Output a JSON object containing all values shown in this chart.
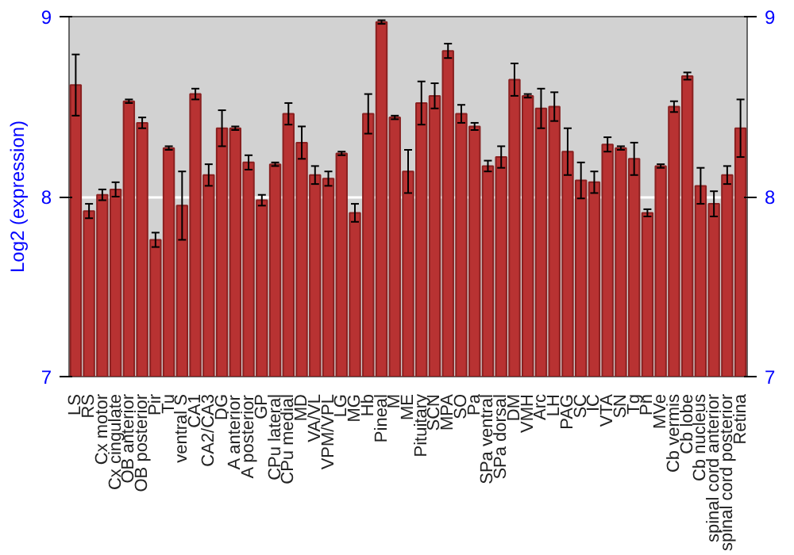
{
  "chart_data": {
    "type": "bar",
    "ylabel": "Log2 (expression)",
    "categories": [
      "LS",
      "RS",
      "Cx motor",
      "Cx cingulate",
      "OB anterior",
      "OB posterior",
      "Pir",
      "Tu",
      "ventral S",
      "CA1",
      "CA2/CA3",
      "DG",
      "A anterior",
      "A posterior",
      "GP",
      "CPu lateral",
      "CPu medial",
      "MD",
      "VA/VL",
      "VPM/VPL",
      "LG",
      "MG",
      "Hb",
      "Pineal",
      "M",
      "ME",
      "Pituitary",
      "SCN",
      "MPA",
      "SO",
      "Pa",
      "SPa ventral",
      "SPa dorsal",
      "DM",
      "VMH",
      "Arc",
      "LH",
      "PAG",
      "SC",
      "IC",
      "VTA",
      "SN",
      "Tg",
      "Pn",
      "MVe",
      "Cb vermis",
      "Cb lobe",
      "Cb nucleus",
      "spinal cord anterior",
      "spinal cord posterior",
      "Retina"
    ],
    "values": [
      8.62,
      7.92,
      8.01,
      8.04,
      8.53,
      8.41,
      7.76,
      8.27,
      7.95,
      8.57,
      8.12,
      8.38,
      8.38,
      8.19,
      7.98,
      8.18,
      8.46,
      8.3,
      8.12,
      8.1,
      8.24,
      7.91,
      8.46,
      8.97,
      8.44,
      8.14,
      8.52,
      8.56,
      8.81,
      8.46,
      8.39,
      8.17,
      8.22,
      8.65,
      8.56,
      8.49,
      8.5,
      8.25,
      8.09,
      8.08,
      8.29,
      8.27,
      8.21,
      7.91,
      8.17,
      8.5,
      8.67,
      8.06,
      7.96,
      8.12,
      8.38
    ],
    "errors": [
      0.17,
      0.04,
      0.03,
      0.04,
      0.01,
      0.03,
      0.04,
      0.01,
      0.19,
      0.03,
      0.06,
      0.1,
      0.01,
      0.04,
      0.03,
      0.01,
      0.06,
      0.09,
      0.05,
      0.04,
      0.01,
      0.05,
      0.11,
      0.01,
      0.01,
      0.12,
      0.12,
      0.07,
      0.04,
      0.05,
      0.02,
      0.03,
      0.06,
      0.09,
      0.01,
      0.11,
      0.08,
      0.13,
      0.1,
      0.06,
      0.04,
      0.01,
      0.09,
      0.02,
      0.01,
      0.03,
      0.02,
      0.1,
      0.07,
      0.05,
      0.16
    ],
    "color": "#b83232",
    "ylim": [
      7,
      9
    ],
    "yticks": [
      7,
      8,
      9
    ],
    "y2lim": [
      7,
      9
    ],
    "y2ticks": [
      7,
      8,
      9
    ],
    "grid": "y"
  }
}
